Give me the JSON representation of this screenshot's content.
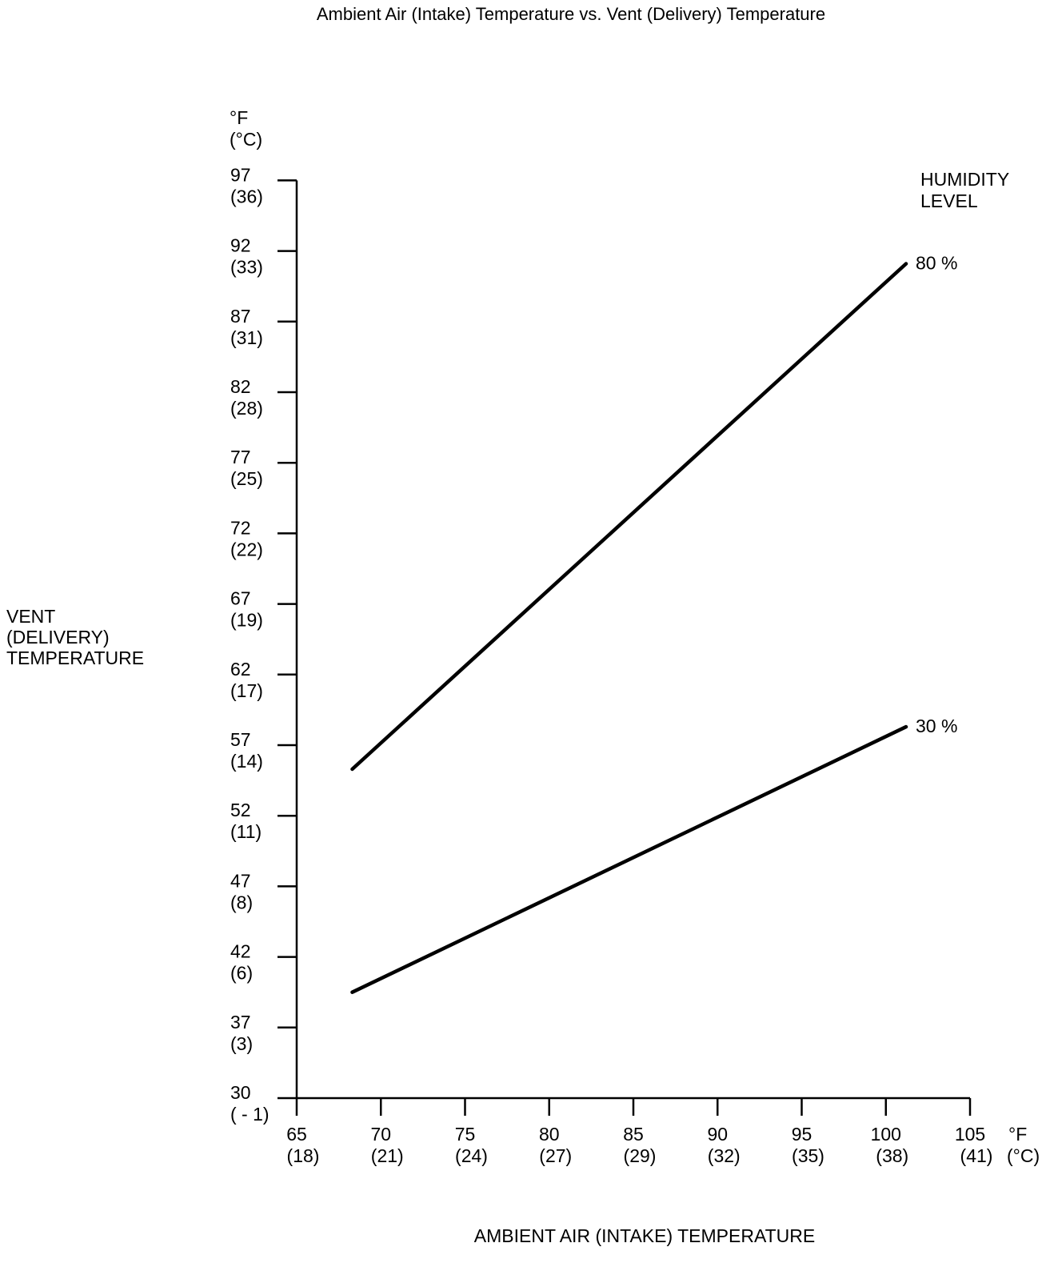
{
  "chart_data": {
    "type": "line",
    "title": "Ambient Air (Intake) Temperature vs. Vent (Delivery) Temperature",
    "xlabel": "AMBIENT AIR (INTAKE) TEMPERATURE",
    "ylabel": [
      "VENT",
      "(DELIVERY)",
      "TEMPERATURE"
    ],
    "x_unit": [
      "°F",
      "(°C)"
    ],
    "y_unit": [
      "°F",
      "(°C)"
    ],
    "legend_title": [
      "HUMIDITY",
      "LEVEL"
    ],
    "xlim": [
      65,
      105
    ],
    "x_ticks": [
      {
        "f": 65,
        "c": "(18)"
      },
      {
        "f": 70,
        "c": "(21)"
      },
      {
        "f": 75,
        "c": "(24)"
      },
      {
        "f": 80,
        "c": "(27)"
      },
      {
        "f": 85,
        "c": "(29)"
      },
      {
        "f": 90,
        "c": "(32)"
      },
      {
        "f": 95,
        "c": "(35)"
      },
      {
        "f": 100,
        "c": "(38)"
      },
      {
        "f": 105,
        "c": "(41)"
      }
    ],
    "y_ticks": [
      {
        "f": 30,
        "c": "( - 1)"
      },
      {
        "f": 37,
        "c": "(3)"
      },
      {
        "f": 42,
        "c": "(6)"
      },
      {
        "f": 47,
        "c": "(8)"
      },
      {
        "f": 52,
        "c": "(11)"
      },
      {
        "f": 57,
        "c": "(14)"
      },
      {
        "f": 62,
        "c": "(17)"
      },
      {
        "f": 67,
        "c": "(19)"
      },
      {
        "f": 72,
        "c": "(22)"
      },
      {
        "f": 77,
        "c": "(25)"
      },
      {
        "f": 82,
        "c": "(28)"
      },
      {
        "f": 87,
        "c": "(31)"
      },
      {
        "f": 92,
        "c": "(33)"
      },
      {
        "f": 97,
        "c": "(36)"
      }
    ],
    "series": [
      {
        "name": "80 %",
        "x": [
          68.3,
          101.2
        ],
        "y": [
          55.3,
          91.1
        ]
      },
      {
        "name": "30 %",
        "x": [
          68.3,
          101.2
        ],
        "y": [
          39.5,
          58.3
        ]
      }
    ],
    "grid": false
  }
}
